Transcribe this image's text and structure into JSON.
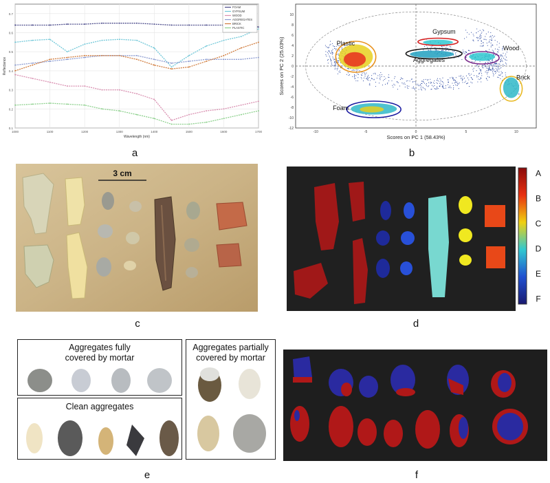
{
  "panel_labels": {
    "a": "a",
    "b": "b",
    "c": "c",
    "d": "d",
    "e": "e",
    "f": "f"
  },
  "chart_data": [
    {
      "type": "line",
      "panel": "a",
      "title": "",
      "xlabel": "Wavelength (nm)",
      "ylabel": "Reflectance",
      "xlim": [
        1000,
        1700
      ],
      "ylim": [
        0.1,
        0.75
      ],
      "x": [
        1000,
        1050,
        1100,
        1150,
        1200,
        1250,
        1300,
        1350,
        1400,
        1450,
        1500,
        1550,
        1600,
        1650,
        1700
      ],
      "series": [
        {
          "name": "FOAM",
          "color": "#4a4a8a",
          "values": [
            0.64,
            0.64,
            0.64,
            0.645,
            0.645,
            0.65,
            0.65,
            0.65,
            0.645,
            0.64,
            0.64,
            0.64,
            0.64,
            0.64,
            0.63
          ]
        },
        {
          "name": "GYPSUM",
          "color": "#6fc7d8",
          "values": [
            0.55,
            0.56,
            0.565,
            0.5,
            0.54,
            0.56,
            0.565,
            0.56,
            0.52,
            0.42,
            0.48,
            0.53,
            0.56,
            0.58,
            0.62
          ]
        },
        {
          "name": "WOOD",
          "color": "#d98fb0",
          "values": [
            0.38,
            0.36,
            0.34,
            0.32,
            0.32,
            0.3,
            0.3,
            0.28,
            0.25,
            0.14,
            0.17,
            0.19,
            0.2,
            0.22,
            0.24
          ]
        },
        {
          "name": "AGGREGATES",
          "color": "#8a9ad0",
          "values": [
            0.43,
            0.44,
            0.45,
            0.46,
            0.47,
            0.48,
            0.48,
            0.48,
            0.46,
            0.44,
            0.45,
            0.46,
            0.46,
            0.46,
            0.47
          ]
        },
        {
          "name": "BRICK",
          "color": "#d07a3a",
          "values": [
            0.4,
            0.43,
            0.46,
            0.47,
            0.48,
            0.48,
            0.48,
            0.46,
            0.43,
            0.41,
            0.42,
            0.45,
            0.48,
            0.52,
            0.55
          ]
        },
        {
          "name": "PLASTIC",
          "color": "#8cd08c",
          "values": [
            0.22,
            0.225,
            0.23,
            0.225,
            0.22,
            0.2,
            0.19,
            0.17,
            0.15,
            0.12,
            0.12,
            0.13,
            0.15,
            0.17,
            0.19
          ]
        }
      ],
      "y_ticks": [
        "0.1",
        "0.2",
        "0.3",
        "0.4",
        "0.5",
        "0.6",
        "0.7"
      ],
      "x_ticks": [
        "1000",
        "1100",
        "1200",
        "1300",
        "1400",
        "1500",
        "1600",
        "1700"
      ],
      "legend_position": "top-right",
      "grid": true
    },
    {
      "type": "scatter",
      "panel": "b",
      "title": "",
      "xlabel": "Scores on PC 1 (58.43%)",
      "ylabel": "Scores on PC 2 (25.03%)",
      "xlim": [
        -12,
        12
      ],
      "ylim": [
        -12,
        12
      ],
      "x_ticks": [
        "-10",
        "-5",
        "0",
        "5",
        "10"
      ],
      "y_ticks": [
        "10",
        "8",
        "6",
        "4",
        "2",
        "0",
        "-2",
        "-4",
        "-6",
        "-8",
        "-10",
        "-12"
      ],
      "annotations": [
        {
          "text": "Plastic",
          "x": -7,
          "y": 4,
          "color": "#e8921e",
          "ex": -6,
          "ey": 1.8,
          "rx": 2,
          "ry": 3
        },
        {
          "text": "Gypsum",
          "x": 2.8,
          "y": 6.3,
          "color": "#d42020",
          "ex": 2.2,
          "ey": 4.7,
          "rx": 2,
          "ry": 0.7
        },
        {
          "text": "Aggregates",
          "x": 1.3,
          "y": 0.8,
          "color": "#1a1a1a",
          "ex": 1.8,
          "ey": 2.4,
          "rx": 2.8,
          "ry": 1
        },
        {
          "text": "Wood",
          "x": 9.5,
          "y": 3.1,
          "color": "#7a2a8a",
          "ex": 6.6,
          "ey": 1.6,
          "rx": 1.7,
          "ry": 1.2
        },
        {
          "text": "Brick",
          "x": 10.7,
          "y": -2.6,
          "color": "#e8b820",
          "ex": 9.5,
          "ey": -4.4,
          "rx": 1.1,
          "ry": 2.4
        },
        {
          "text": "Foam",
          "x": -7.5,
          "y": -8.5,
          "color": "#1a1aa0",
          "ex": -4.2,
          "ey": -8.4,
          "rx": 2.7,
          "ry": 1.6
        }
      ],
      "grid": false
    }
  ],
  "photo_c": {
    "scale_label": "3 cm"
  },
  "map_d": {
    "legend": [
      "A",
      "B",
      "C",
      "D",
      "E",
      "F"
    ],
    "legend_colors": [
      "#a01010",
      "#e84010",
      "#f0c810",
      "#30c0d0",
      "#2050d0",
      "#1a1a80"
    ]
  },
  "panel_e": {
    "box1_title_line1": "Aggregates fully",
    "box1_title_line2": "covered by mortar",
    "box2_title": "Clean aggregates",
    "box3_title_line1": "Aggregates partially",
    "box3_title_line2": "covered by mortar"
  },
  "map_f": {
    "colors": {
      "mortar": "#b01818",
      "aggregate": "#2a2aa0",
      "background": "#1e1e1e"
    }
  }
}
